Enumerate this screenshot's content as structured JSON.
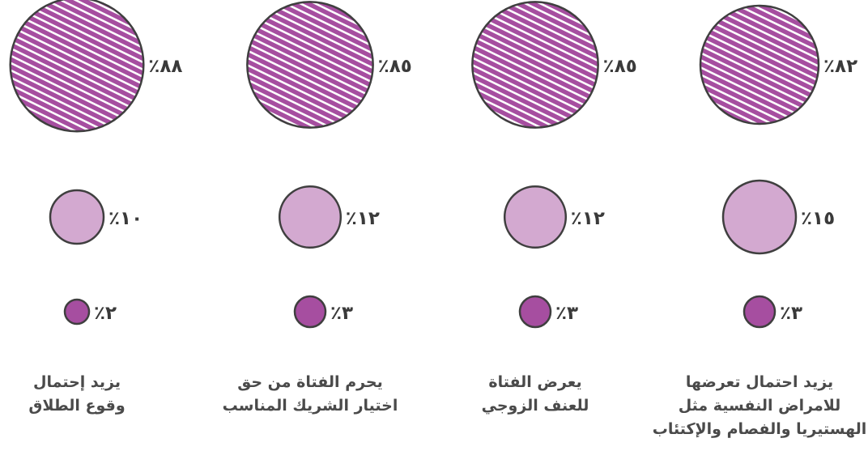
{
  "colors": {
    "dark": "#a64ea0",
    "light": "#d3a9d0",
    "hatch": "#a64ea0",
    "outline": "#3f3f3f",
    "text": "#3a3a3a"
  },
  "chart_data": {
    "type": "bubble",
    "categories": [
      {
        "caption": [
          "يزيد احتمال تعرضها",
          "للامراض النفسية مثل",
          "الهستيريا والفصام والإكتئاب"
        ]
      },
      {
        "caption": [
          "يعرض الفتاة",
          "للعنف الزوجي"
        ]
      },
      {
        "caption": [
          "يحرم الفتاة من حق",
          "اختيار الشريك المناسب"
        ]
      },
      {
        "caption": [
          "يزيد إحتمال",
          "وقوع الطلاق"
        ]
      }
    ],
    "series": [
      {
        "values": [
          82,
          85,
          85,
          88
        ],
        "labels": [
          "٪٨٢",
          "٪٨٥",
          "٪٨٥",
          "٪٨٨"
        ],
        "style": "hatched"
      },
      {
        "values": [
          15,
          12,
          12,
          10
        ],
        "labels": [
          "٪١٥",
          "٪١٢",
          "٪١٢",
          "٪١٠"
        ],
        "style": "light"
      },
      {
        "values": [
          3,
          3,
          3,
          2
        ],
        "labels": [
          "٪٣",
          "٪٣",
          "٪٣",
          "٪٢"
        ],
        "style": "dark"
      }
    ]
  }
}
